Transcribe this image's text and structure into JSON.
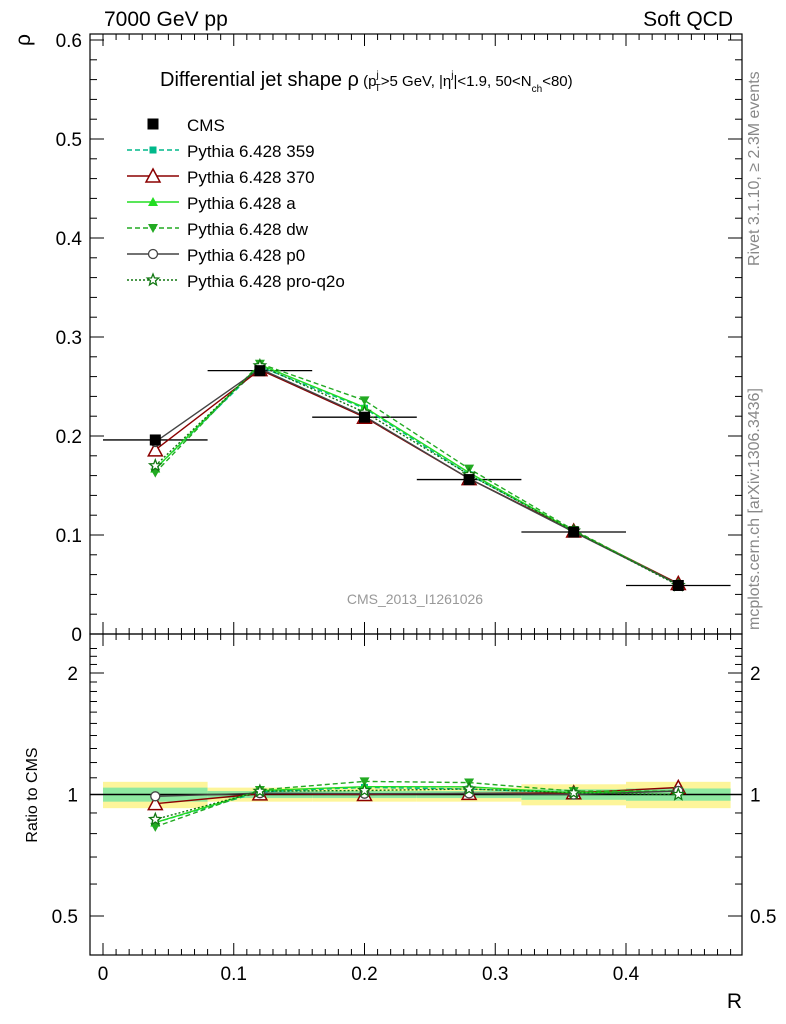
{
  "header": {
    "left_title": "7000 GeV pp",
    "right_title": "Soft QCD"
  },
  "side_labels": {
    "rivet": "Rivet 3.1.10, ≥ 2.3M events",
    "mcplots": "mcplots.cern.ch [arXiv:1306.3436]"
  },
  "chart_data": {
    "type": "line",
    "title_main": "Differential jet shape ",
    "title_rho": "ρ",
    "title_cond": "(p",
    "title_sub_T": "T",
    "title_sup_j": "j",
    "title_mid": ">5 GeV, |η",
    "title_sup_j2": "j",
    "title_mid2": "|<1.9, 50<N",
    "title_sub_ch": "ch",
    "title_end": "<80)",
    "watermark": "CMS_2013_I1261026",
    "ylabel": "ρ",
    "ratio_ylabel": "Ratio to CMS",
    "xlabel": "R",
    "xlim": [
      -0.01,
      0.48
    ],
    "ylim": [
      0,
      0.6
    ],
    "ratio_ylim": [
      0.4,
      2.4
    ],
    "x_ticks": [
      "0",
      "0.1",
      "0.2",
      "0.3",
      "0.4"
    ],
    "y_ticks": [
      "0.1",
      "0.2",
      "0.3",
      "0.4",
      "0.5",
      "0.6"
    ],
    "y_tick_zero": "0",
    "ratio_ticks": [
      "0.5",
      "1",
      "2"
    ],
    "legend_position": "top-left",
    "x": [
      0.04,
      0.12,
      0.2,
      0.28,
      0.36,
      0.44
    ],
    "bin_edges": [
      0.0,
      0.08,
      0.16,
      0.24,
      0.32,
      0.4,
      0.48
    ],
    "data": {
      "name": "CMS",
      "values": [
        0.196,
        0.266,
        0.219,
        0.156,
        0.103,
        0.049
      ],
      "band_inner": [
        0.04,
        0.02,
        0.02,
        0.02,
        0.03,
        0.035
      ],
      "band_outer": [
        0.075,
        0.04,
        0.04,
        0.04,
        0.06,
        0.075
      ]
    },
    "series": [
      {
        "name": "Pythia 6.428 359",
        "color": "#00b88a",
        "dash": "5,3",
        "marker": "square-small",
        "values": [
          0.167,
          0.27,
          0.228,
          0.161,
          0.104,
          0.05
        ]
      },
      {
        "name": "Pythia 6.428 370",
        "color": "#8b0000",
        "dash": "",
        "marker": "triangle-open",
        "values": [
          0.186,
          0.267,
          0.219,
          0.157,
          0.104,
          0.051
        ]
      },
      {
        "name": "Pythia 6.428 a",
        "color": "#22dd22",
        "dash": "",
        "marker": "triangle-filled",
        "values": [
          0.167,
          0.272,
          0.229,
          0.163,
          0.104,
          0.05
        ]
      },
      {
        "name": "Pythia 6.428 dw",
        "color": "#22aa22",
        "dash": "5,3",
        "marker": "triangle-down",
        "values": [
          0.163,
          0.273,
          0.236,
          0.167,
          0.105,
          0.05
        ]
      },
      {
        "name": "Pythia 6.428 p0",
        "color": "#444444",
        "dash": "",
        "marker": "circle-open",
        "values": [
          0.194,
          0.268,
          0.22,
          0.157,
          0.103,
          0.05
        ]
      },
      {
        "name": "Pythia 6.428 pro-q2o",
        "color": "#117711",
        "dash": "2,2",
        "marker": "star",
        "values": [
          0.17,
          0.271,
          0.224,
          0.161,
          0.104,
          0.049
        ]
      }
    ]
  }
}
